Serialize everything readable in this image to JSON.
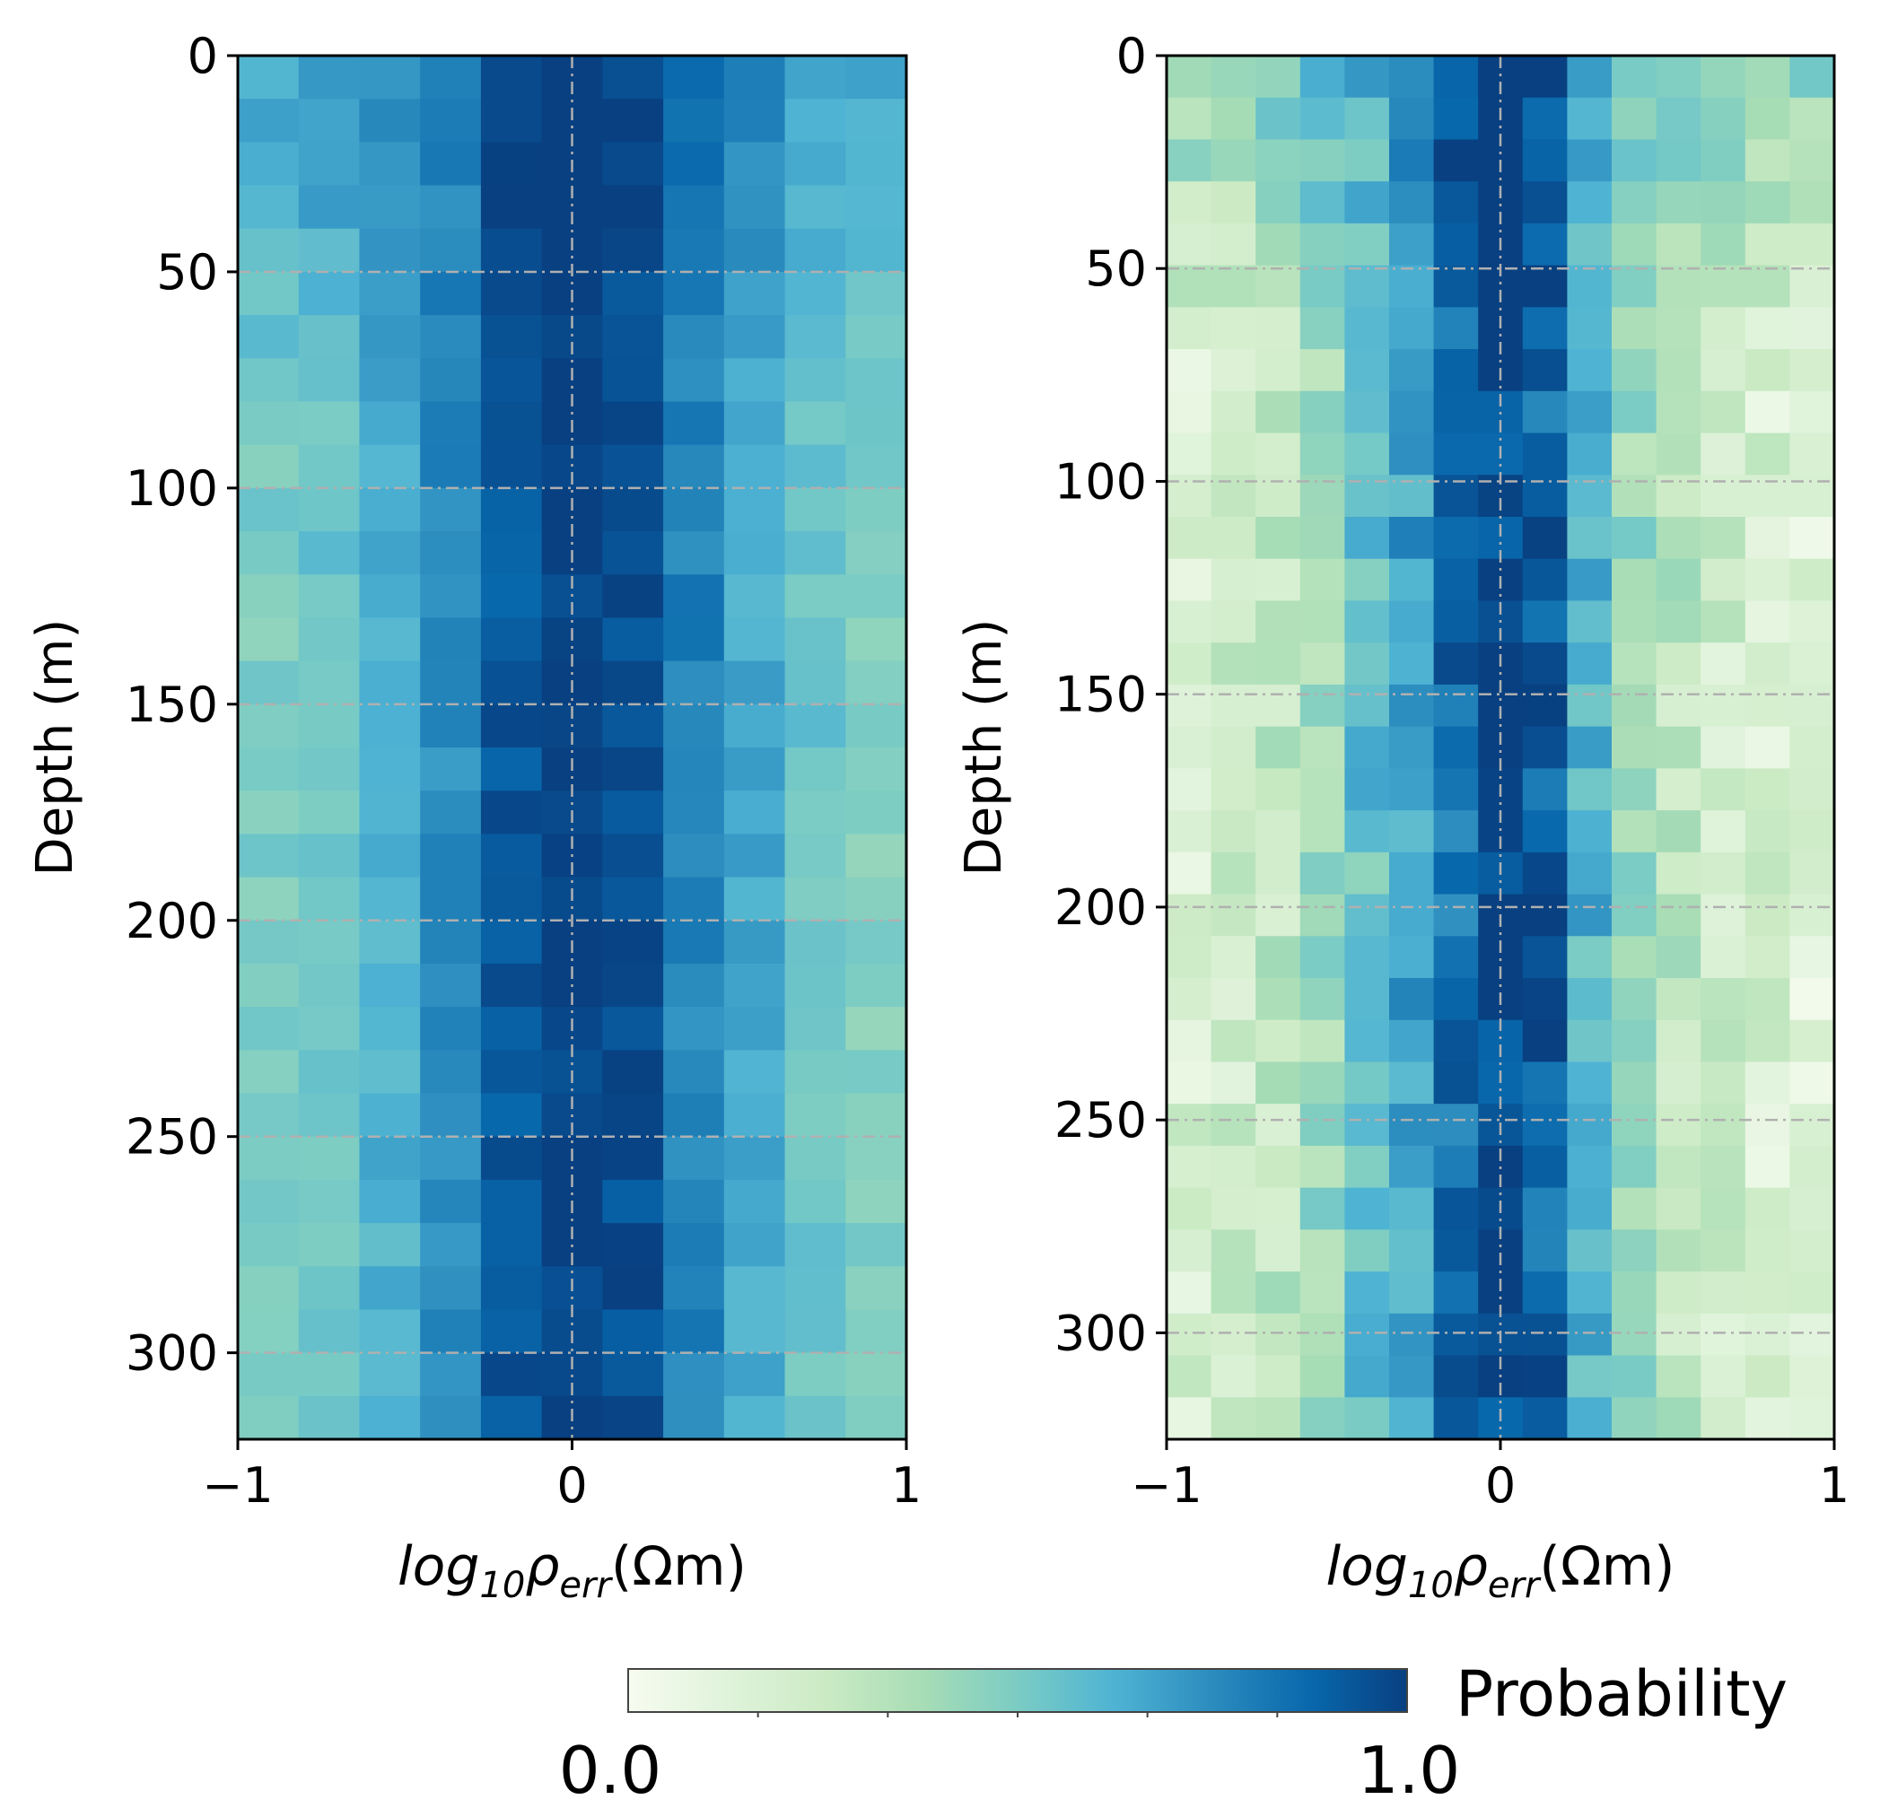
{
  "chart_data": [
    {
      "type": "heatmap",
      "title": "",
      "xlabel_parts": [
        "log",
        "10",
        "ρ",
        "err",
        "(Ωm)"
      ],
      "ylabel": "Depth (m)",
      "xlim": [
        -1,
        1
      ],
      "ylim": [
        320,
        0
      ],
      "xticks": [
        -1,
        0,
        1
      ],
      "xtick_labels": [
        "−1",
        "0",
        "1"
      ],
      "yticks": [
        0,
        50,
        100,
        150,
        200,
        250,
        300
      ],
      "ytick_labels": [
        "0",
        "50",
        "100",
        "150",
        "200",
        "250",
        "300"
      ],
      "grid": true,
      "n_rows": 32,
      "n_cols": 11,
      "column_profile": [
        0.5,
        0.55,
        0.62,
        0.75,
        0.92,
        1.0,
        0.95,
        0.78,
        0.65,
        0.55,
        0.48
      ],
      "row_variation": 0.06,
      "top_edge_strength": 0.25,
      "top_rows": 8
    },
    {
      "type": "heatmap",
      "title": "",
      "xlabel_parts": [
        "log",
        "10",
        "ρ",
        "err",
        "(Ωm)"
      ],
      "ylabel": "Depth (m)",
      "xlim": [
        -1,
        1
      ],
      "ylim": [
        325,
        0
      ],
      "xticks": [
        -1,
        0,
        1
      ],
      "xtick_labels": [
        "−1",
        "0",
        "1"
      ],
      "yticks": [
        0,
        50,
        100,
        150,
        200,
        250,
        300
      ],
      "ytick_labels": [
        "0",
        "50",
        "100",
        "150",
        "200",
        "250",
        "300"
      ],
      "grid": true,
      "n_rows": 33,
      "n_cols": 15,
      "column_profile": [
        0.18,
        0.22,
        0.28,
        0.4,
        0.55,
        0.68,
        0.85,
        0.98,
        0.88,
        0.62,
        0.4,
        0.3,
        0.22,
        0.18,
        0.14
      ],
      "row_variation": 0.12,
      "top_edge_strength": 0.45,
      "top_rows": 6
    }
  ],
  "colorbar": {
    "label": "Probability",
    "min_label": "0.0",
    "max_label": "1.0",
    "vmin": 0.0,
    "vmax": 1.0,
    "colormap": "GnBu",
    "colors": [
      "#f7fcf0",
      "#e0f3db",
      "#ccebc5",
      "#a8ddb5",
      "#7bccc4",
      "#4eb3d3",
      "#2b8cbe",
      "#0868ac",
      "#084081"
    ]
  }
}
